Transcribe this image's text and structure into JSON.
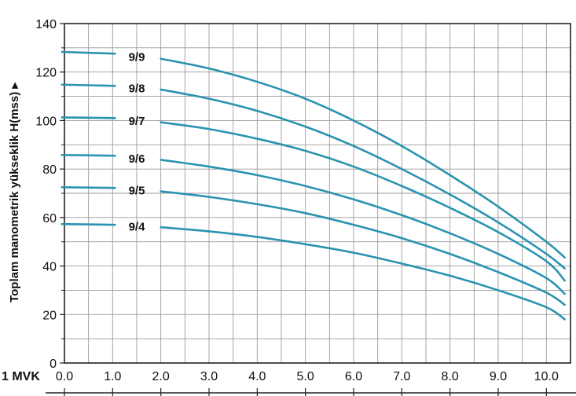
{
  "chart_data": {
    "type": "line",
    "ylabel": "Toplam manometrik yükseklik H(mss) ▸",
    "xunit_label": "1 MVK",
    "xlim": [
      0,
      10.5
    ],
    "ylim": [
      0,
      140
    ],
    "x_ticks": [
      "0.0",
      "1.0",
      "2.0",
      "3.0",
      "4.0",
      "5.0",
      "6.0",
      "7.0",
      "8.0",
      "9.0",
      "10.0"
    ],
    "y_ticks": [
      "0",
      "20",
      "40",
      "60",
      "80",
      "100",
      "120",
      "140"
    ],
    "grid": true,
    "line_color": "#2a93b0",
    "series": [
      {
        "name": "9/9",
        "shutoff": {
          "x": [
            -0.05,
            1.05
          ],
          "y": [
            128.3,
            127.6
          ]
        },
        "x": [
          2.0,
          3.0,
          4.0,
          5.0,
          6.0,
          7.0,
          8.0,
          9.0,
          10.0,
          10.38
        ],
        "y": [
          125.5,
          121.5,
          116.0,
          109.0,
          100.0,
          89.5,
          77.5,
          64.5,
          50.0,
          43.5
        ]
      },
      {
        "name": "9/8",
        "shutoff": {
          "x": [
            -0.05,
            1.05
          ],
          "y": [
            114.8,
            114.3
          ]
        },
        "x": [
          2.0,
          3.0,
          4.0,
          5.0,
          6.0,
          7.0,
          8.0,
          9.0,
          10.0,
          10.38
        ],
        "y": [
          112.8,
          109.0,
          104.0,
          97.5,
          89.5,
          80.0,
          69.5,
          58.0,
          45.0,
          39.0
        ]
      },
      {
        "name": "9/7",
        "shutoff": {
          "x": [
            -0.05,
            1.05
          ],
          "y": [
            101.3,
            101.0
          ]
        },
        "x": [
          2.0,
          3.0,
          4.0,
          5.0,
          6.0,
          7.0,
          8.0,
          9.0,
          10.0,
          10.38
        ],
        "y": [
          99.3,
          96.5,
          92.5,
          87.5,
          81.0,
          73.0,
          64.0,
          54.0,
          42.0,
          34.0
        ]
      },
      {
        "name": "9/6",
        "shutoff": {
          "x": [
            -0.05,
            1.05
          ],
          "y": [
            85.8,
            85.5
          ]
        },
        "x": [
          2.0,
          3.0,
          4.0,
          5.0,
          6.0,
          7.0,
          8.0,
          9.0,
          10.0,
          10.38
        ],
        "y": [
          83.8,
          81.0,
          77.5,
          73.0,
          67.5,
          61.0,
          53.5,
          45.0,
          35.0,
          28.5
        ]
      },
      {
        "name": "9/5",
        "shutoff": {
          "x": [
            -0.05,
            1.05
          ],
          "y": [
            72.5,
            72.2
          ]
        },
        "x": [
          2.0,
          3.0,
          4.0,
          5.0,
          6.0,
          7.0,
          8.0,
          9.0,
          10.0,
          10.38
        ],
        "y": [
          70.8,
          68.5,
          65.5,
          61.8,
          57.0,
          51.5,
          45.0,
          37.5,
          29.0,
          24.0
        ]
      },
      {
        "name": "9/4",
        "shutoff": {
          "x": [
            -0.05,
            1.05
          ],
          "y": [
            57.3,
            57.0
          ]
        },
        "x": [
          2.0,
          3.0,
          4.0,
          5.0,
          6.0,
          7.0,
          8.0,
          9.0,
          10.0,
          10.38
        ],
        "y": [
          56.0,
          54.3,
          52.0,
          49.0,
          45.5,
          41.0,
          36.0,
          30.0,
          23.0,
          18.0
        ]
      }
    ]
  }
}
